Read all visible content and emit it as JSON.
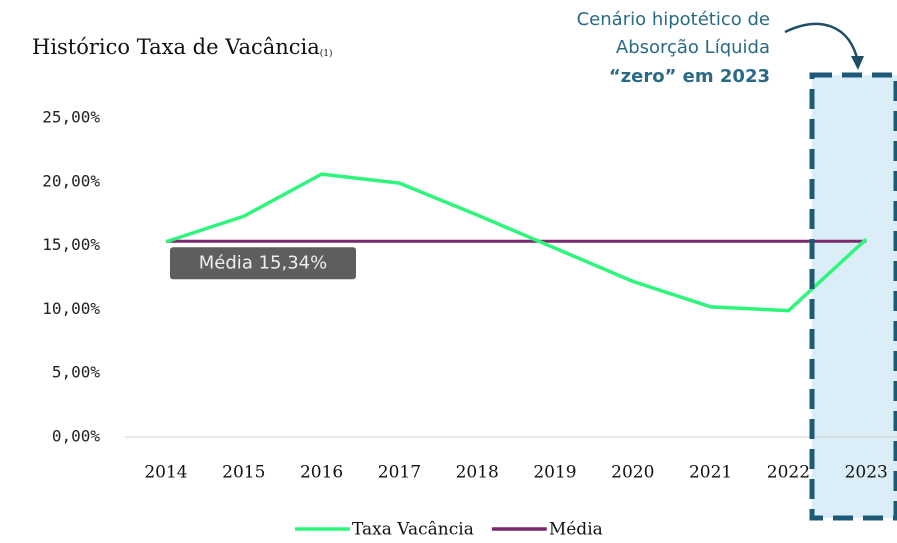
{
  "chart_data": {
    "type": "line",
    "title": "Histórico Taxa de Vacância",
    "title_note": "(1)",
    "annotation_lines": [
      "Cenário hipotético de",
      "Absorção Líquida",
      "“zero” em 2023"
    ],
    "mean_label": "Média 15,34%",
    "categories": [
      "2014",
      "2015",
      "2016",
      "2017",
      "2018",
      "2019",
      "2020",
      "2021",
      "2022",
      "2023"
    ],
    "series": [
      {
        "name": "Taxa Vacância",
        "color": "#2ef57c",
        "values": [
          15.3,
          17.3,
          20.6,
          19.9,
          17.4,
          14.8,
          12.2,
          10.2,
          9.9,
          15.5
        ]
      },
      {
        "name": "Média",
        "color": "#7a2a6f",
        "values": [
          15.34,
          15.34,
          15.34,
          15.34,
          15.34,
          15.34,
          15.34,
          15.34,
          15.34,
          15.34
        ]
      }
    ],
    "ylim": [
      0,
      25
    ],
    "yticks": [
      {
        "value": 0,
        "label": "0,00%"
      },
      {
        "value": 5,
        "label": "5,00%"
      },
      {
        "value": 10,
        "label": "10,00%"
      },
      {
        "value": 15,
        "label": "15,00%"
      },
      {
        "value": 20,
        "label": "20,00%"
      },
      {
        "value": 25,
        "label": "25,00%"
      }
    ],
    "grid": false,
    "legend": "bottom"
  }
}
